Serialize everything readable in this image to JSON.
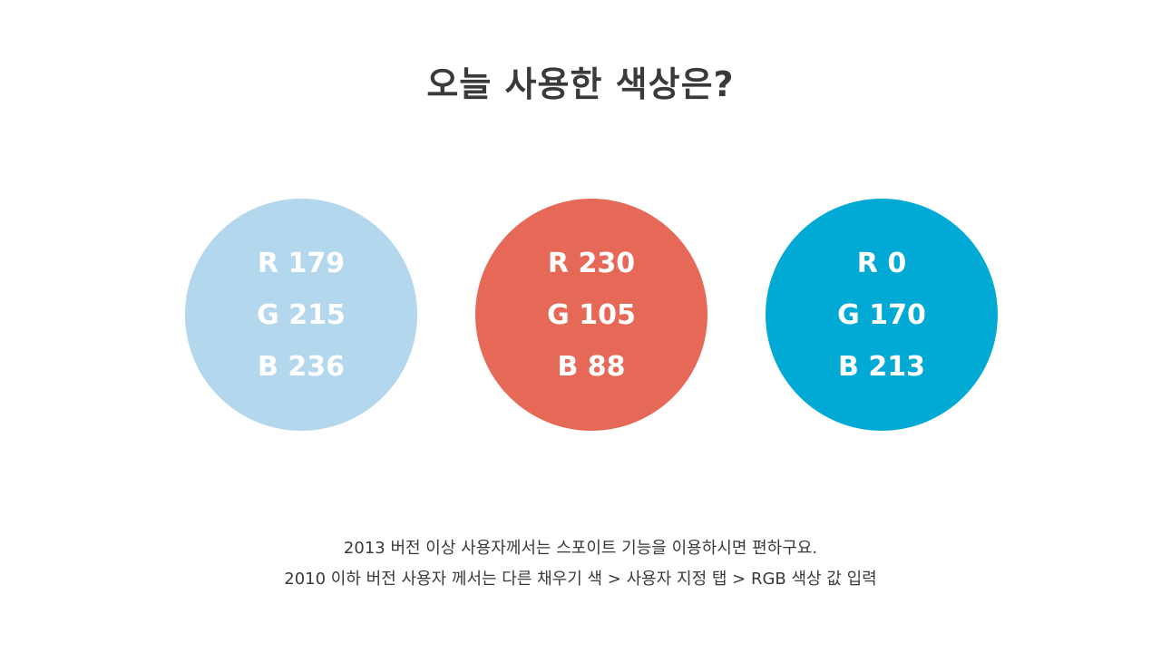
{
  "title": "오늘 사용한 색상은?",
  "colors": [
    {
      "fill": "#B3D7EC",
      "r": "R 179",
      "g": "G 215",
      "b": "B 236"
    },
    {
      "fill": "#E66958",
      "r": "R 230",
      "g": "G 105",
      "b": "B 88"
    },
    {
      "fill": "#00AAD5",
      "r": "R 0",
      "g": "G 170",
      "b": "B 213"
    }
  ],
  "notes": [
    "2013 버전 이상 사용자께서는 스포이트 기능을 이용하시면 편하구요.",
    "2010 이하 버전 사용자 께서는 다른 채우기 색 > 사용자 지정 탭 > RGB 색상 값 입력"
  ]
}
